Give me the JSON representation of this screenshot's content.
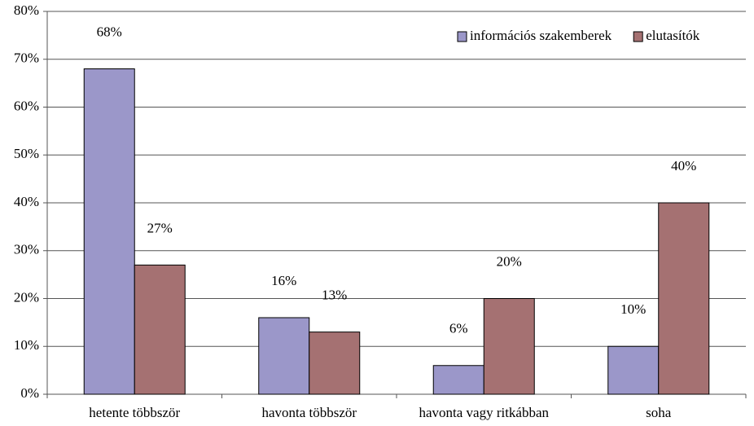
{
  "chart_data": {
    "type": "bar",
    "categories": [
      "hetente többször",
      "havonta többször",
      "havonta vagy ritkábban",
      "soha"
    ],
    "series": [
      {
        "name": "információs szakemberek",
        "color": "#9b97c9",
        "values": [
          68,
          16,
          6,
          10
        ],
        "value_labels": [
          "68%",
          "16%",
          "6%",
          "10%"
        ]
      },
      {
        "name": "elutasítók",
        "color": "#a57172",
        "values": [
          27,
          13,
          20,
          40
        ],
        "value_labels": [
          "27%",
          "13%",
          "20%",
          "40%"
        ]
      }
    ],
    "ylim": [
      0,
      80
    ],
    "yticks": [
      {
        "value": 0,
        "label": "0%"
      },
      {
        "value": 10,
        "label": "10%"
      },
      {
        "value": 20,
        "label": "20%"
      },
      {
        "value": 30,
        "label": "30%"
      },
      {
        "value": 40,
        "label": "40%"
      },
      {
        "value": 50,
        "label": "50%"
      },
      {
        "value": 60,
        "label": "60%"
      },
      {
        "value": 70,
        "label": "70%"
      },
      {
        "value": 80,
        "label": "80%"
      }
    ],
    "grid": true,
    "legend": "top-right"
  }
}
